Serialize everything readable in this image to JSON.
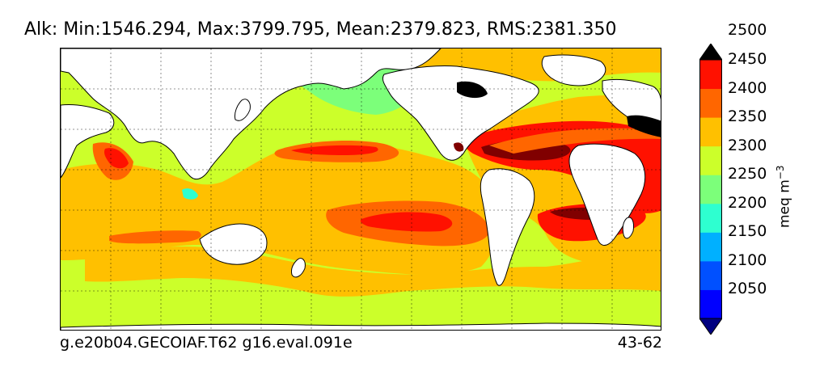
{
  "header": {
    "title": "Alk: Min:1546.294, Max:3799.795, Mean:2379.823, RMS:2381.350"
  },
  "footer": {
    "case_name": "g.e20b04.GECOIAF.T62 g16.eval.091e",
    "years": "43-62"
  },
  "map": {
    "variable": "Alk",
    "stats": {
      "min": 1546.294,
      "max": 3799.795,
      "mean": 2379.823,
      "rms": 2381.35
    },
    "projection": "cylindrical",
    "gridlines": true
  },
  "colorbar": {
    "units_base": "meq m",
    "units_exp": "−3",
    "extend": "both",
    "levels": [
      2050,
      2100,
      2150,
      2200,
      2250,
      2300,
      2350,
      2400,
      2450,
      2500
    ],
    "tick_labels": [
      "2500",
      "2450",
      "2400",
      "2350",
      "2300",
      "2250",
      "2200",
      "2150",
      "2100",
      "2050"
    ],
    "colors": [
      "#000080",
      "#0000ff",
      "#0050ff",
      "#00b0ff",
      "#2effd0",
      "#7cff7a",
      "#ccff2a",
      "#ffc000",
      "#ff6600",
      "#ff1100",
      "#800000"
    ],
    "land_color": "#ffffff"
  }
}
